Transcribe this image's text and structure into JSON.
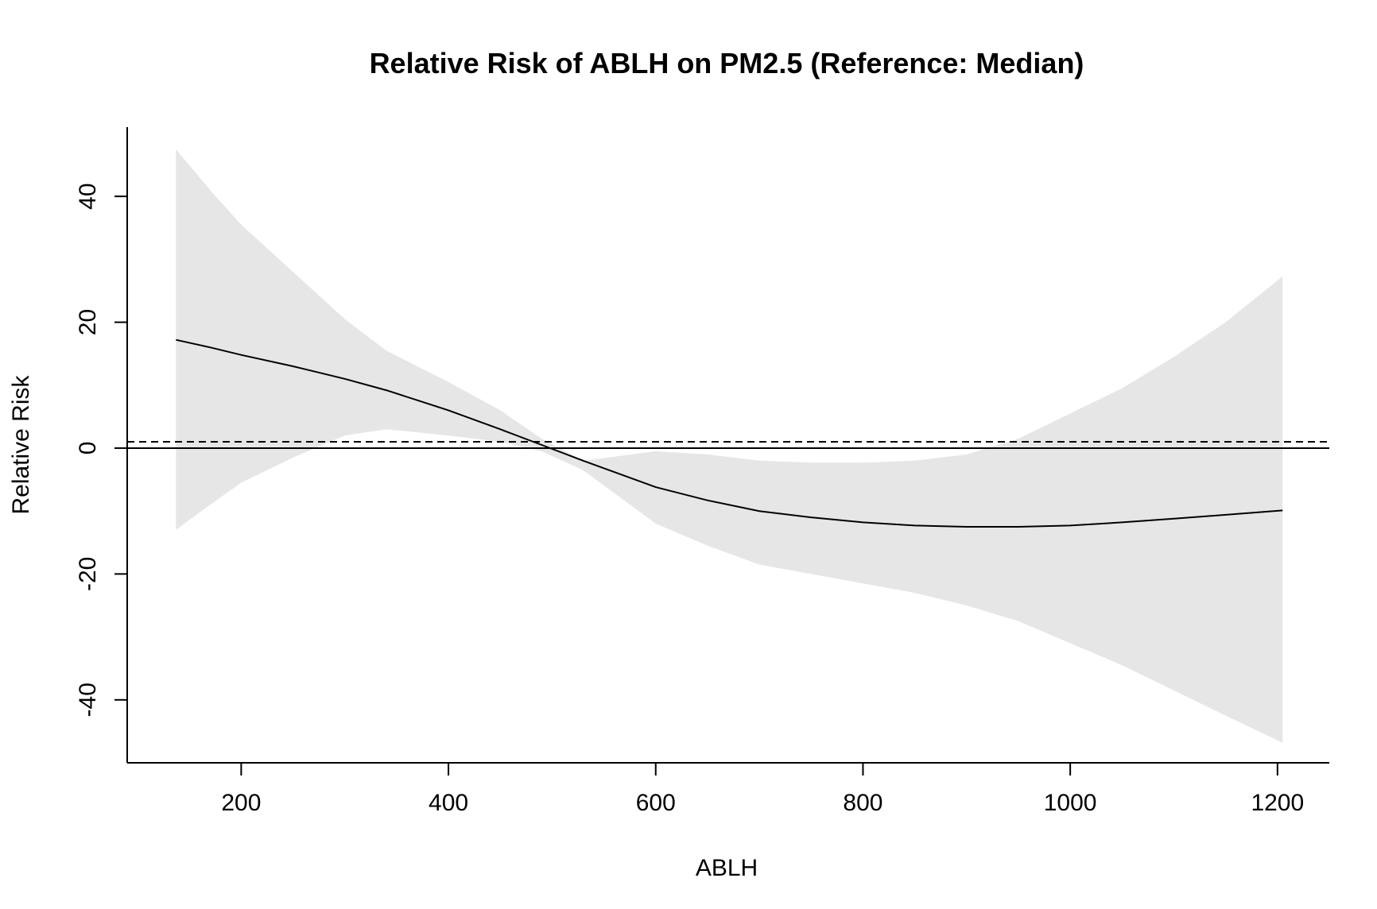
{
  "chart_data": {
    "type": "line",
    "title": "Relative Risk of ABLH on PM2.5 (Reference: Median)",
    "xlabel": "ABLH",
    "ylabel": "Relative Risk",
    "xlim": [
      90,
      1250
    ],
    "ylim": [
      -50,
      51
    ],
    "x_ticks": [
      200,
      400,
      600,
      800,
      1000,
      1200
    ],
    "y_ticks": [
      -40,
      -20,
      0,
      20,
      40
    ],
    "grid": false,
    "legend": "none",
    "colors": {
      "band": "#e6e6e6",
      "line": "#000000",
      "reference": "#000000"
    },
    "reference_lines": [
      {
        "y": 0,
        "style": "solid"
      },
      {
        "y": 1,
        "style": "dashed"
      }
    ],
    "series": [
      {
        "x": [
          137,
          170,
          200,
          250,
          300,
          340,
          400,
          450,
          490,
          530,
          600,
          650,
          700,
          750,
          800,
          850,
          900,
          950,
          1000,
          1050,
          1100,
          1150,
          1205
        ],
        "y": [
          17.2,
          16.0,
          14.8,
          13.0,
          11.0,
          9.2,
          6.0,
          3.0,
          0.5,
          -2.0,
          -6.2,
          -8.3,
          -10.0,
          -11.0,
          -11.8,
          -12.3,
          -12.5,
          -12.5,
          -12.3,
          -11.8,
          -11.2,
          -10.6,
          -9.9
        ],
        "upper": [
          47.5,
          41.0,
          35.5,
          28.0,
          20.5,
          15.5,
          10.5,
          6.0,
          1.5,
          -2.0,
          -0.5,
          -1.0,
          -2.0,
          -2.3,
          -2.3,
          -2.0,
          -1.0,
          1.5,
          5.5,
          9.5,
          14.5,
          20.0,
          27.3
        ],
        "lower": [
          -13.0,
          -9.0,
          -5.5,
          -1.5,
          2.0,
          3.0,
          2.0,
          1.0,
          -0.5,
          -3.5,
          -12.0,
          -15.5,
          -18.5,
          -20.0,
          -21.5,
          -23.0,
          -25.0,
          -27.5,
          -31.0,
          -34.5,
          -38.5,
          -42.5,
          -46.8
        ]
      }
    ]
  }
}
